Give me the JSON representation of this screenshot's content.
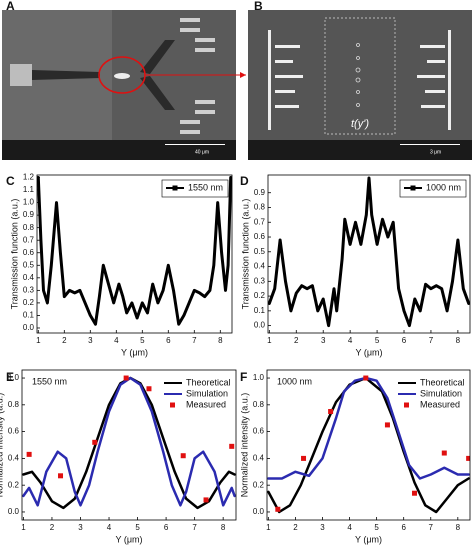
{
  "panels": {
    "A": {
      "label": "A",
      "scale": "40 μm"
    },
    "B": {
      "label": "B",
      "scale": "3 μm",
      "annotation": "t(y')"
    }
  },
  "chart_data": [
    {
      "type": "line",
      "label": "C",
      "ylabel": "Transmission function (a.u.)",
      "xlabel": "Y (μm)",
      "xlim": [
        0.95,
        8.45
      ],
      "xticks": [
        1,
        2,
        3,
        4,
        5,
        6,
        7,
        8
      ],
      "ylim": [
        -0.04,
        1.22
      ],
      "yticks": [
        {
          "value": 0,
          "label": "0.0"
        },
        {
          "value": 0.1,
          "label": "0.1"
        },
        {
          "value": 0.2,
          "label": "0.2"
        },
        {
          "value": 0.3,
          "label": "0.3"
        },
        {
          "value": 0.4,
          "label": "0.4"
        },
        {
          "value": 0.5,
          "label": "0.5"
        },
        {
          "value": 0.6,
          "label": "0.6"
        },
        {
          "value": 0.7,
          "label": "0.7"
        },
        {
          "value": 0.8,
          "label": "0.8"
        },
        {
          "value": 0.9,
          "label": "0.9"
        },
        {
          "value": 1,
          "label": "1.0"
        },
        {
          "value": 1.1,
          "label": "1.1"
        },
        {
          "value": 1.2,
          "label": "1.2"
        }
      ],
      "legend": "upper right",
      "legend_frame": true,
      "series": [
        {
          "name": "1550 nm",
          "color": "#000000",
          "mode": "line",
          "width": 3,
          "x": [
            1.0,
            1.1,
            1.2,
            1.35,
            1.5,
            1.7,
            1.85,
            2.0,
            2.2,
            2.4,
            2.6,
            2.8,
            3.0,
            3.2,
            3.35,
            3.5,
            3.7,
            3.9,
            4.1,
            4.25,
            4.4,
            4.6,
            4.8,
            5.0,
            5.2,
            5.4,
            5.6,
            5.8,
            6.0,
            6.2,
            6.4,
            6.6,
            6.8,
            7.0,
            7.2,
            7.4,
            7.6,
            7.75,
            7.9,
            8.05,
            8.2,
            8.3,
            8.4
          ],
          "values": [
            1.2,
            0.7,
            0.3,
            0.2,
            0.5,
            1.0,
            0.6,
            0.25,
            0.3,
            0.28,
            0.3,
            0.2,
            0.1,
            0.03,
            0.25,
            0.5,
            0.35,
            0.2,
            0.35,
            0.25,
            0.12,
            0.2,
            0.08,
            0.2,
            0.12,
            0.35,
            0.2,
            0.3,
            0.5,
            0.3,
            0.03,
            0.1,
            0.2,
            0.3,
            0.28,
            0.25,
            0.3,
            0.5,
            1.0,
            0.6,
            0.3,
            0.5,
            1.2
          ]
        }
      ]
    },
    {
      "type": "line",
      "label": "D",
      "ylabel": "Transmission function (a.u.)",
      "xlabel": "Y (μm)",
      "xlim": [
        0.95,
        8.45
      ],
      "xticks": [
        1,
        2,
        3,
        4,
        5,
        6,
        7,
        8
      ],
      "ylim": [
        -0.05,
        1.02
      ],
      "yticks": [
        {
          "value": 0,
          "label": "0.0"
        },
        {
          "value": 0.1,
          "label": "0.1"
        },
        {
          "value": 0.2,
          "label": "0.2"
        },
        {
          "value": 0.3,
          "label": "0.3"
        },
        {
          "value": 0.4,
          "label": "0.4"
        },
        {
          "value": 0.5,
          "label": "0.5"
        },
        {
          "value": 0.6,
          "label": "0.6"
        },
        {
          "value": 0.7,
          "label": "0.7"
        },
        {
          "value": 0.8,
          "label": "0.8"
        },
        {
          "value": 0.9,
          "label": "0.9"
        }
      ],
      "legend": "upper right",
      "legend_frame": true,
      "series": [
        {
          "name": "1000 nm",
          "color": "#000000",
          "mode": "line",
          "width": 3,
          "x": [
            1.0,
            1.2,
            1.4,
            1.6,
            1.8,
            2.0,
            2.2,
            2.4,
            2.6,
            2.8,
            3.0,
            3.2,
            3.4,
            3.5,
            3.7,
            3.8,
            4.0,
            4.2,
            4.4,
            4.6,
            4.7,
            4.8,
            5.0,
            5.2,
            5.4,
            5.6,
            5.8,
            6.0,
            6.2,
            6.4,
            6.6,
            6.8,
            7.0,
            7.2,
            7.4,
            7.6,
            7.8,
            8.0,
            8.2,
            8.4
          ],
          "values": [
            0.15,
            0.25,
            0.58,
            0.3,
            0.1,
            0.22,
            0.27,
            0.25,
            0.27,
            0.1,
            0.18,
            0.0,
            0.25,
            0.1,
            0.45,
            0.72,
            0.55,
            0.7,
            0.55,
            0.75,
            1.0,
            0.75,
            0.55,
            0.72,
            0.6,
            0.7,
            0.25,
            0.1,
            0.0,
            0.18,
            0.1,
            0.28,
            0.25,
            0.27,
            0.25,
            0.1,
            0.3,
            0.58,
            0.25,
            0.15
          ]
        }
      ]
    },
    {
      "type": "line",
      "label": "E",
      "ylabel": "Normalized intensity (a.u.)",
      "xlabel": "Y (μm)",
      "annotation": "1550 nm",
      "xlim": [
        0.95,
        8.45
      ],
      "xticks": [
        1,
        2,
        3,
        4,
        5,
        6,
        7,
        8
      ],
      "ylim": [
        -0.06,
        1.06
      ],
      "yticks": [
        {
          "value": 0,
          "label": "0.0"
        },
        {
          "value": 0.2,
          "label": "0.2"
        },
        {
          "value": 0.4,
          "label": "0.4"
        },
        {
          "value": 0.6,
          "label": "0.6"
        },
        {
          "value": 0.8,
          "label": "0.8"
        },
        {
          "value": 1,
          "label": "1.0"
        }
      ],
      "legend": "upper right",
      "legend_frame": false,
      "series": [
        {
          "name": "Theoretical",
          "color": "#000000",
          "mode": "line",
          "width": 2.5,
          "x": [
            1.0,
            1.3,
            1.6,
            2.0,
            2.4,
            2.8,
            3.2,
            3.6,
            4.0,
            4.4,
            4.75,
            5.1,
            5.5,
            5.9,
            6.3,
            6.7,
            7.1,
            7.5,
            7.9,
            8.2,
            8.4
          ],
          "values": [
            0.28,
            0.3,
            0.22,
            0.08,
            0.03,
            0.1,
            0.3,
            0.55,
            0.8,
            0.96,
            1.0,
            0.96,
            0.8,
            0.55,
            0.3,
            0.1,
            0.03,
            0.08,
            0.22,
            0.3,
            0.28
          ]
        },
        {
          "name": "Simulation",
          "color": "#2b2bb0",
          "mode": "line",
          "width": 2.5,
          "x": [
            1.0,
            1.2,
            1.5,
            1.8,
            2.2,
            2.5,
            2.8,
            3.0,
            3.3,
            3.6,
            4.0,
            4.4,
            4.75,
            5.1,
            5.5,
            5.9,
            6.2,
            6.5,
            6.7,
            7.0,
            7.3,
            7.7,
            8.0,
            8.3,
            8.4
          ],
          "values": [
            0.12,
            0.18,
            0.05,
            0.3,
            0.45,
            0.4,
            0.15,
            0.05,
            0.2,
            0.45,
            0.75,
            0.95,
            1.0,
            0.95,
            0.75,
            0.45,
            0.2,
            0.05,
            0.15,
            0.4,
            0.45,
            0.3,
            0.05,
            0.18,
            0.12
          ]
        },
        {
          "name": "Measured",
          "color": "#e01010",
          "mode": "marker",
          "x": [
            1.2,
            2.3,
            3.5,
            4.6,
            5.4,
            6.6,
            7.4,
            8.3
          ],
          "values": [
            0.43,
            0.27,
            0.52,
            1.0,
            0.92,
            0.42,
            0.09,
            0.49
          ]
        }
      ]
    },
    {
      "type": "line",
      "label": "F",
      "ylabel": "Normalized intensity (a.u.)",
      "xlabel": "Y (μm)",
      "annotation": "1000 nm",
      "xlim": [
        0.95,
        8.45
      ],
      "xticks": [
        1,
        2,
        3,
        4,
        5,
        6,
        7,
        8
      ],
      "ylim": [
        -0.06,
        1.06
      ],
      "yticks": [
        {
          "value": 0,
          "label": "0.0"
        },
        {
          "value": 0.2,
          "label": "0.2"
        },
        {
          "value": 0.4,
          "label": "0.4"
        },
        {
          "value": 0.6,
          "label": "0.6"
        },
        {
          "value": 0.8,
          "label": "0.8"
        },
        {
          "value": 1,
          "label": "1.0"
        }
      ],
      "legend": "upper right",
      "legend_frame": false,
      "series": [
        {
          "name": "Theoretical",
          "color": "#000000",
          "mode": "line",
          "width": 2.5,
          "x": [
            1.0,
            1.4,
            1.8,
            2.2,
            2.6,
            3.0,
            3.5,
            4.0,
            4.6,
            5.2,
            5.6,
            6.0,
            6.4,
            6.8,
            7.2,
            7.6,
            8.0,
            8.4
          ],
          "values": [
            0.15,
            0.0,
            0.05,
            0.2,
            0.4,
            0.6,
            0.82,
            0.95,
            1.0,
            0.9,
            0.7,
            0.45,
            0.22,
            0.05,
            0.0,
            0.1,
            0.2,
            0.25
          ]
        },
        {
          "name": "Simulation",
          "color": "#2b2bb0",
          "mode": "line",
          "width": 2.5,
          "x": [
            1.0,
            1.5,
            2.0,
            2.5,
            3.0,
            3.5,
            3.8,
            4.2,
            4.6,
            5.0,
            5.4,
            5.8,
            6.2,
            6.6,
            7.0,
            7.5,
            8.0,
            8.4
          ],
          "values": [
            0.25,
            0.25,
            0.3,
            0.27,
            0.4,
            0.7,
            0.9,
            0.98,
            1.0,
            0.98,
            0.85,
            0.6,
            0.35,
            0.25,
            0.28,
            0.33,
            0.28,
            0.28
          ]
        },
        {
          "name": "Measured",
          "color": "#e01010",
          "mode": "marker",
          "x": [
            1.35,
            2.3,
            3.3,
            4.6,
            5.4,
            6.4,
            7.5,
            8.4
          ],
          "values": [
            0.02,
            0.4,
            0.75,
            1.0,
            0.65,
            0.14,
            0.44,
            0.4
          ]
        }
      ]
    }
  ]
}
